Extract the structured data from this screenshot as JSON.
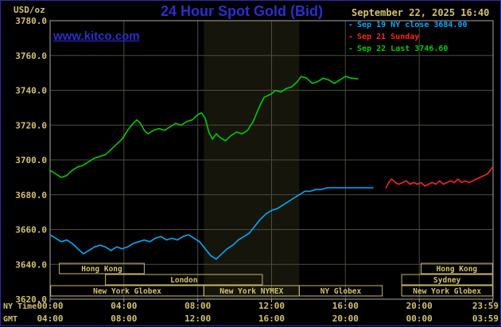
{
  "header": {
    "units": "USD/oz",
    "title": "24 Hour Spot Gold (Bid)",
    "datetime": "September 22, 2025 16:40",
    "watermark": "www.kitco.com"
  },
  "legend": {
    "marker": "-",
    "items": [
      {
        "label": "Sep 19 NY close 3684.00",
        "color": "#00aaff"
      },
      {
        "label": "Sep 21 Sunday",
        "color": "#ff2222"
      },
      {
        "label": "Sep 22 Last 3746.60",
        "color": "#00cc00"
      }
    ]
  },
  "axes": {
    "ny_label": "NY Time",
    "gmt_label": "GMT",
    "y_ticks": [
      "3780.0",
      "3760.0",
      "3740.0",
      "3720.0",
      "3700.0",
      "3680.0",
      "3660.0",
      "3640.0",
      "3620.0"
    ],
    "x_tick_hours": [
      0,
      4,
      8,
      12,
      16,
      20,
      23.983
    ],
    "x_ticks_ny": [
      "00:00",
      "04:00",
      "08:00",
      "12:00",
      "16:00",
      "20:00",
      "23:59"
    ],
    "x_ticks_gmt": [
      "04:00",
      "08:00",
      "12:00",
      "16:00",
      "20:00",
      "00:00",
      "03:59"
    ]
  },
  "colors": {
    "background": "#000000",
    "outer_border": "#2a2aa8",
    "blue": "#2d2dd0",
    "tan": "#d2c270",
    "grid": "#4c4c3f",
    "frame": "#a8a8a8",
    "band": "#15150c",
    "session_border": "#c9b765"
  },
  "chart_data": {
    "type": "line",
    "title": "24 Hour Spot Gold (Bid)",
    "xlabel": "NY Time",
    "ylabel": "USD/oz",
    "ylim": [
      3620,
      3780
    ],
    "xlim_hours": [
      0,
      24
    ],
    "grid": true,
    "legend_position": "top-right",
    "shaded_band_hours": [
      8.33,
      13.5
    ],
    "series": [
      {
        "name": "Sep 19 NY close 3684.00",
        "color": "#00aaff",
        "close": 3684.0,
        "points": [
          [
            0,
            3657
          ],
          [
            0.3,
            3655
          ],
          [
            0.6,
            3653
          ],
          [
            0.9,
            3654
          ],
          [
            1.2,
            3652
          ],
          [
            1.5,
            3649
          ],
          [
            1.8,
            3646
          ],
          [
            2.1,
            3648
          ],
          [
            2.4,
            3650
          ],
          [
            2.7,
            3651
          ],
          [
            3.0,
            3650
          ],
          [
            3.3,
            3648
          ],
          [
            3.6,
            3650
          ],
          [
            3.9,
            3649
          ],
          [
            4.2,
            3650
          ],
          [
            4.5,
            3652
          ],
          [
            4.8,
            3653
          ],
          [
            5.1,
            3654
          ],
          [
            5.4,
            3653
          ],
          [
            5.7,
            3655
          ],
          [
            6.0,
            3656
          ],
          [
            6.3,
            3654
          ],
          [
            6.6,
            3655
          ],
          [
            6.9,
            3654
          ],
          [
            7.2,
            3656
          ],
          [
            7.5,
            3657
          ],
          [
            7.8,
            3655
          ],
          [
            8.1,
            3653
          ],
          [
            8.4,
            3649
          ],
          [
            8.7,
            3645
          ],
          [
            9.0,
            3643
          ],
          [
            9.3,
            3646
          ],
          [
            9.6,
            3649
          ],
          [
            9.9,
            3651
          ],
          [
            10.2,
            3654
          ],
          [
            10.5,
            3656
          ],
          [
            10.8,
            3658
          ],
          [
            11.1,
            3662
          ],
          [
            11.4,
            3666
          ],
          [
            11.7,
            3669
          ],
          [
            12.0,
            3671
          ],
          [
            12.3,
            3672
          ],
          [
            12.6,
            3674
          ],
          [
            12.9,
            3676
          ],
          [
            13.2,
            3678
          ],
          [
            13.5,
            3680
          ],
          [
            13.8,
            3682
          ],
          [
            14.1,
            3682
          ],
          [
            14.4,
            3683
          ],
          [
            14.7,
            3683
          ],
          [
            15.0,
            3684
          ],
          [
            15.5,
            3684
          ],
          [
            16.0,
            3684
          ],
          [
            16.5,
            3684
          ],
          [
            17.0,
            3684
          ],
          [
            17.5,
            3684
          ]
        ]
      },
      {
        "name": "Sep 21 Sunday",
        "color": "#ff2222",
        "points": [
          [
            18.2,
            3684
          ],
          [
            18.35,
            3687
          ],
          [
            18.5,
            3689
          ],
          [
            18.7,
            3687
          ],
          [
            18.9,
            3686
          ],
          [
            19.1,
            3687
          ],
          [
            19.3,
            3688
          ],
          [
            19.5,
            3686
          ],
          [
            19.7,
            3687
          ],
          [
            19.9,
            3686
          ],
          [
            20.1,
            3687
          ],
          [
            20.3,
            3685
          ],
          [
            20.5,
            3686
          ],
          [
            20.7,
            3687
          ],
          [
            20.9,
            3686
          ],
          [
            21.1,
            3688
          ],
          [
            21.3,
            3686
          ],
          [
            21.5,
            3687
          ],
          [
            21.7,
            3688
          ],
          [
            21.9,
            3687
          ],
          [
            22.1,
            3689
          ],
          [
            22.3,
            3687
          ],
          [
            22.5,
            3688
          ],
          [
            22.7,
            3687
          ],
          [
            22.9,
            3688
          ],
          [
            23.1,
            3689
          ],
          [
            23.3,
            3690
          ],
          [
            23.5,
            3691
          ],
          [
            23.7,
            3692
          ],
          [
            23.85,
            3694
          ],
          [
            23.98,
            3696
          ]
        ]
      },
      {
        "name": "Sep 22 Last 3746.60",
        "color": "#00cc00",
        "last": 3746.6,
        "points": [
          [
            0,
            3694
          ],
          [
            0.3,
            3692
          ],
          [
            0.6,
            3690
          ],
          [
            0.9,
            3691
          ],
          [
            1.2,
            3694
          ],
          [
            1.5,
            3696
          ],
          [
            1.8,
            3697
          ],
          [
            2.1,
            3699
          ],
          [
            2.4,
            3701
          ],
          [
            2.7,
            3702
          ],
          [
            3.0,
            3703
          ],
          [
            3.3,
            3706
          ],
          [
            3.6,
            3709
          ],
          [
            3.9,
            3712
          ],
          [
            4.2,
            3717
          ],
          [
            4.5,
            3721
          ],
          [
            4.7,
            3723
          ],
          [
            4.9,
            3721
          ],
          [
            5.1,
            3717
          ],
          [
            5.3,
            3715
          ],
          [
            5.6,
            3717
          ],
          [
            5.9,
            3718
          ],
          [
            6.2,
            3717
          ],
          [
            6.5,
            3719
          ],
          [
            6.8,
            3721
          ],
          [
            7.1,
            3720
          ],
          [
            7.4,
            3722
          ],
          [
            7.7,
            3723
          ],
          [
            8.0,
            3726
          ],
          [
            8.2,
            3727
          ],
          [
            8.4,
            3724
          ],
          [
            8.6,
            3716
          ],
          [
            8.8,
            3712
          ],
          [
            9.0,
            3715
          ],
          [
            9.2,
            3713
          ],
          [
            9.5,
            3711
          ],
          [
            9.8,
            3714
          ],
          [
            10.1,
            3716
          ],
          [
            10.4,
            3715
          ],
          [
            10.7,
            3717
          ],
          [
            11.0,
            3722
          ],
          [
            11.2,
            3727
          ],
          [
            11.4,
            3732
          ],
          [
            11.6,
            3736
          ],
          [
            11.8,
            3737
          ],
          [
            12.0,
            3738
          ],
          [
            12.2,
            3740
          ],
          [
            12.5,
            3739
          ],
          [
            12.8,
            3741
          ],
          [
            13.1,
            3742
          ],
          [
            13.4,
            3745
          ],
          [
            13.6,
            3748
          ],
          [
            13.9,
            3747
          ],
          [
            14.2,
            3744
          ],
          [
            14.5,
            3745
          ],
          [
            14.8,
            3747
          ],
          [
            15.1,
            3746
          ],
          [
            15.4,
            3744
          ],
          [
            15.7,
            3746
          ],
          [
            16.0,
            3748
          ],
          [
            16.3,
            3747
          ],
          [
            16.67,
            3746.6
          ]
        ]
      }
    ],
    "sessions": [
      {
        "row": 1,
        "label": "Hong Kong",
        "start_hour": 0.5,
        "end_hour": 5.1
      },
      {
        "row": 1,
        "label": "Hong Kong",
        "start_hour": 20.1,
        "end_hour": 23.97
      },
      {
        "row": 2,
        "label": "London",
        "start_hour": 3.0,
        "end_hour": 11.5
      },
      {
        "row": 2,
        "label": "Sydney",
        "start_hour": 19.05,
        "end_hour": 23.97
      },
      {
        "row": 3,
        "label": "New York Globex",
        "start_hour": 0.03,
        "end_hour": 8.33
      },
      {
        "row": 3,
        "label": "New York NYMEX",
        "start_hour": 8.33,
        "end_hour": 13.5
      },
      {
        "row": 3,
        "label": "NY Globex",
        "start_hour": 13.5,
        "end_hour": 18.0
      },
      {
        "row": 3,
        "label": "New York Globex",
        "start_hour": 19.05,
        "end_hour": 23.97
      }
    ]
  }
}
